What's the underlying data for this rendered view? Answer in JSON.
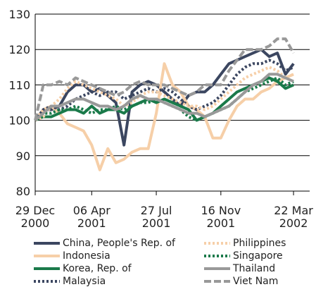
{
  "chart_data": {
    "type": "line",
    "x": [
      "2000-12-29",
      "2001-01-12",
      "2001-01-26",
      "2001-02-09",
      "2001-02-23",
      "2001-03-09",
      "2001-03-23",
      "2001-04-06",
      "2001-04-20",
      "2001-05-04",
      "2001-05-18",
      "2001-06-01",
      "2001-06-15",
      "2001-06-29",
      "2001-07-13",
      "2001-07-27",
      "2001-08-10",
      "2001-08-24",
      "2001-09-07",
      "2001-09-21",
      "2001-10-05",
      "2001-10-19",
      "2001-11-02",
      "2001-11-16",
      "2001-11-30",
      "2001-12-14",
      "2001-12-28",
      "2002-01-11",
      "2002-01-25",
      "2002-02-08",
      "2002-02-22",
      "2002-03-08",
      "2002-03-22"
    ],
    "xlim": [
      "2000-12-29",
      "2002-04-19"
    ],
    "xticks": [
      {
        "value": "2000-12-29",
        "label": "29 Dec\n2000"
      },
      {
        "value": "2001-04-06",
        "label": "06 Apr\n2001"
      },
      {
        "value": "2001-07-27",
        "label": "27 Jul\n2001"
      },
      {
        "value": "2001-11-16",
        "label": "16 Nov\n2001"
      },
      {
        "value": "2002-03-22",
        "label": "22 Mar\n2002"
      }
    ],
    "ylim": [
      80,
      130
    ],
    "yticks": [
      80,
      90,
      100,
      110,
      120,
      130
    ],
    "grid": true,
    "series": [
      {
        "name": "China, People's Rep. of",
        "color": "#3b4660",
        "style": "solid",
        "values": [
          100,
          103,
          103,
          104,
          108,
          110,
          110,
          108,
          109,
          107,
          105,
          93,
          108,
          110,
          111,
          110,
          108,
          106,
          104,
          107,
          108,
          108,
          110,
          113,
          116,
          117,
          118,
          119,
          120,
          118,
          119,
          113,
          116
        ]
      },
      {
        "name": "Indonesia",
        "color": "#f6cfa8",
        "style": "solid",
        "values": [
          100,
          103,
          104,
          102,
          99,
          98,
          97,
          93,
          86,
          92,
          88,
          89,
          91,
          92,
          92,
          102,
          116,
          110,
          108,
          104,
          103,
          101,
          95,
          95,
          100,
          104,
          106,
          106,
          108,
          109,
          111,
          112,
          113
        ]
      },
      {
        "name": "Korea, Rep. of",
        "color": "#1a7a4a",
        "style": "solid",
        "values": [
          100,
          101,
          101,
          102,
          103,
          103,
          102,
          104,
          102,
          103,
          103,
          102,
          104,
          105,
          106,
          105,
          106,
          105,
          104,
          103,
          100,
          101,
          102,
          104,
          106,
          108,
          109,
          110,
          111,
          112,
          111,
          109,
          110
        ]
      },
      {
        "name": "Malaysia",
        "color": "#3b4660",
        "style": "dotted",
        "values": [
          100,
          103,
          104,
          103,
          104,
          106,
          107,
          108,
          107,
          108,
          108,
          106,
          107,
          108,
          109,
          108,
          109,
          108,
          106,
          104,
          103,
          104,
          105,
          107,
          110,
          113,
          115,
          116,
          116,
          117,
          116,
          114,
          115
        ]
      },
      {
        "name": "Philippines",
        "color": "#f6cfa8",
        "style": "dotted",
        "values": [
          100,
          101,
          104,
          106,
          109,
          111,
          110,
          109,
          108,
          107,
          106,
          104,
          105,
          107,
          108,
          108,
          107,
          106,
          105,
          104,
          104,
          103,
          104,
          106,
          108,
          110,
          112,
          113,
          114,
          115,
          114,
          112,
          113
        ]
      },
      {
        "name": "Singapore",
        "color": "#1a7a4a",
        "style": "dotted",
        "values": [
          100,
          102,
          102,
          103,
          103,
          104,
          103,
          102,
          103,
          103,
          104,
          103,
          104,
          105,
          105,
          106,
          105,
          104,
          103,
          101,
          100,
          101,
          102,
          103,
          104,
          106,
          108,
          109,
          110,
          111,
          112,
          110,
          111
        ]
      },
      {
        "name": "Thailand",
        "color": "#999999",
        "style": "solid",
        "values": [
          100,
          102,
          104,
          104,
          105,
          106,
          106,
          105,
          104,
          104,
          103,
          104,
          106,
          107,
          106,
          106,
          105,
          104,
          103,
          102,
          102,
          101,
          102,
          103,
          104,
          106,
          108,
          110,
          111,
          113,
          113,
          112,
          111
        ]
      },
      {
        "name": "Viet Nam",
        "color": "#999999",
        "style": "dashed",
        "values": [
          100,
          110,
          110,
          111,
          110,
          112,
          111,
          110,
          109,
          108,
          107,
          108,
          110,
          111,
          110,
          110,
          110,
          109,
          108,
          107,
          108,
          110,
          110,
          110,
          114,
          117,
          120,
          120,
          120,
          121,
          123,
          123,
          119
        ]
      }
    ]
  }
}
